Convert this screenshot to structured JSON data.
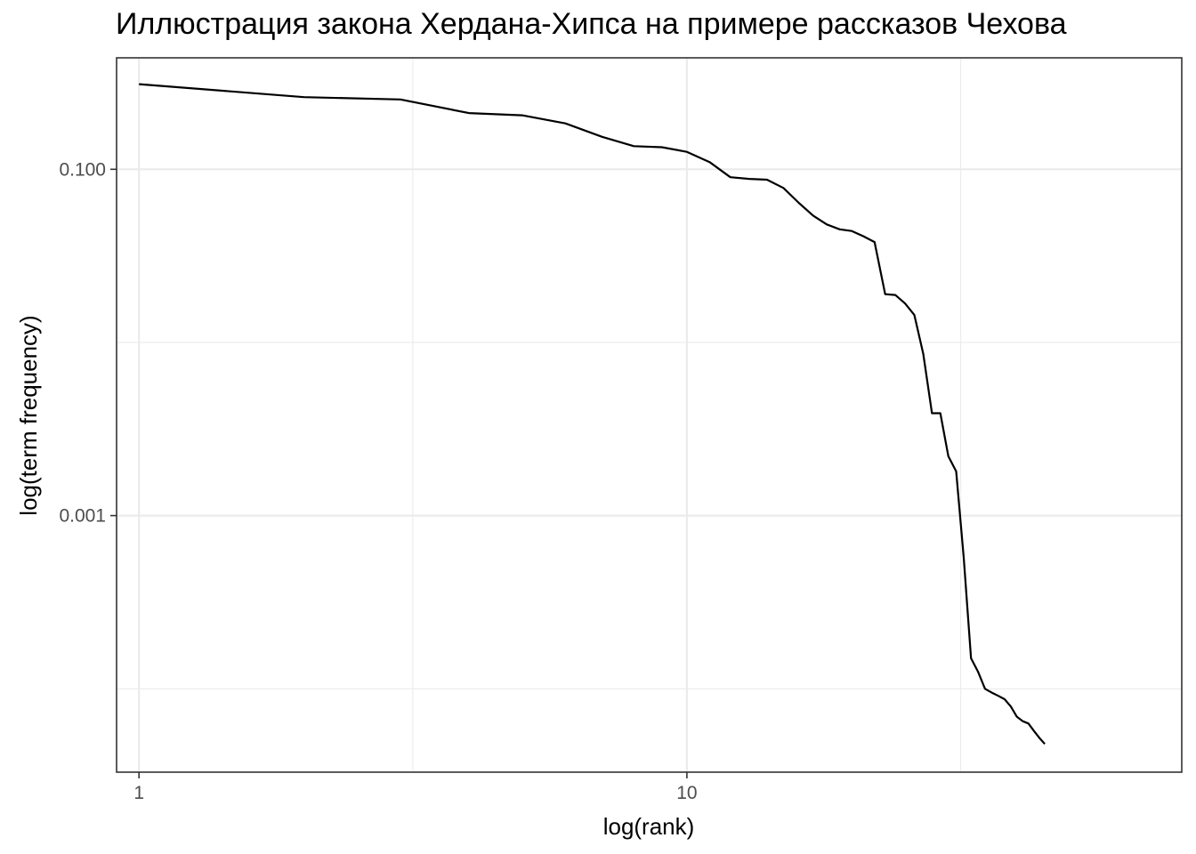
{
  "chart_data": {
    "type": "line",
    "title": "Иллюстрация закона Хердана-Хипса на примере рассказов Чехова",
    "xlabel": "log(rank)",
    "ylabel": "log(term frequency)",
    "x_scale": "log10",
    "y_scale": "log10",
    "xlim": [
      0.91,
      80
    ],
    "ylim": [
      3.3e-05,
      0.44
    ],
    "x_ticks": [
      {
        "value": 1,
        "label": "1"
      },
      {
        "value": 10,
        "label": "10"
      }
    ],
    "x_minor_ticks": [
      3.16,
      31.6
    ],
    "y_ticks": [
      {
        "value": 0.1,
        "label": "0.100"
      },
      {
        "value": 0.001,
        "label": "0.001"
      }
    ],
    "y_minor_ticks": [
      0.01,
      0.0001
    ],
    "grid": true,
    "series": [
      {
        "color": "#000000",
        "points": [
          [
            1.0,
            0.31
          ],
          [
            2.0,
            0.261
          ],
          [
            3.0,
            0.253
          ],
          [
            4.0,
            0.211
          ],
          [
            5.0,
            0.205
          ],
          [
            6.0,
            0.184
          ],
          [
            7.0,
            0.154
          ],
          [
            8.0,
            0.136
          ],
          [
            9.0,
            0.134
          ],
          [
            10.0,
            0.126
          ],
          [
            11.0,
            0.11
          ],
          [
            12.0,
            0.09
          ],
          [
            13.0,
            0.088
          ],
          [
            14.0,
            0.087
          ],
          [
            15.0,
            0.078
          ],
          [
            16.0,
            0.064
          ],
          [
            17.0,
            0.054
          ],
          [
            18.0,
            0.048
          ],
          [
            19.0,
            0.045
          ],
          [
            20.0,
            0.044
          ],
          [
            21.0,
            0.041
          ],
          [
            22.0,
            0.038
          ],
          [
            23.0,
            0.019
          ],
          [
            24.0,
            0.0188
          ],
          [
            25.0,
            0.0168
          ],
          [
            26.0,
            0.0144
          ],
          [
            27.0,
            0.0086
          ],
          [
            28.0,
            0.0039
          ],
          [
            29.0,
            0.0039
          ],
          [
            30.0,
            0.0022
          ],
          [
            31.0,
            0.0018
          ],
          [
            32.0,
            0.00057
          ],
          [
            33.0,
            0.00015
          ],
          [
            34.0,
            0.000125
          ],
          [
            35.0,
            0.0001
          ],
          [
            36.0,
            9.5e-05
          ],
          [
            37.0,
            9.1e-05
          ],
          [
            38.0,
            8.7e-05
          ],
          [
            39.0,
            7.9e-05
          ],
          [
            40.0,
            6.9e-05
          ],
          [
            41.0,
            6.5e-05
          ],
          [
            42.0,
            6.3e-05
          ],
          [
            43.0,
            5.7e-05
          ],
          [
            44.0,
            5.2e-05
          ],
          [
            45.0,
            4.8e-05
          ]
        ]
      }
    ]
  }
}
